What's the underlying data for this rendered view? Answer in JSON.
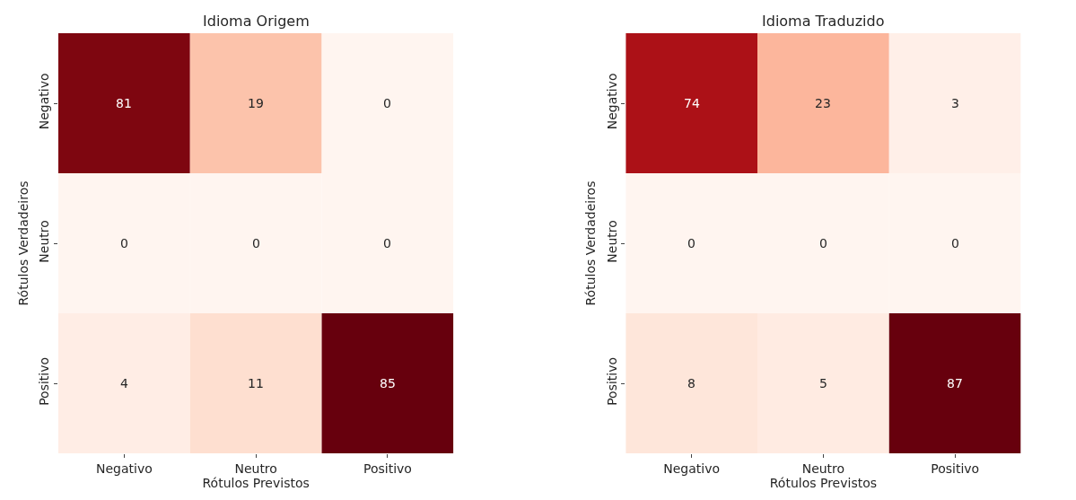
{
  "chart_data": [
    {
      "type": "heatmap",
      "title": "Idioma Origem",
      "xlabel": "Rótulos Previstos",
      "ylabel": "Rótulos Verdadeiros",
      "categories": [
        "Negativo",
        "Neutro",
        "Positivo"
      ],
      "y_categories": [
        "Negativo",
        "Neutro",
        "Positivo"
      ],
      "cells": [
        [
          81,
          19,
          0
        ],
        [
          0,
          0,
          0
        ],
        [
          4,
          11,
          85
        ]
      ],
      "data_labels": true
    },
    {
      "type": "heatmap",
      "title": "Idioma Traduzido",
      "xlabel": "Rótulos Previstos",
      "ylabel": "Rótulos Verdadeiros",
      "categories": [
        "Negativo",
        "Neutro",
        "Positivo"
      ],
      "y_categories": [
        "Negativo",
        "Neutro",
        "Positivo"
      ],
      "cells": [
        [
          74,
          23,
          3
        ],
        [
          0,
          0,
          0
        ],
        [
          8,
          5,
          87
        ]
      ],
      "data_labels": true
    }
  ]
}
